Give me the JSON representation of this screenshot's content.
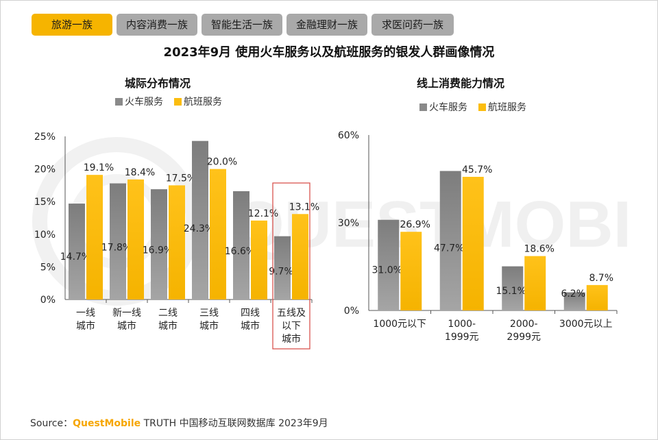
{
  "tabs": [
    {
      "label": "旅游一族",
      "active": true
    },
    {
      "label": "内容消费一族",
      "active": false
    },
    {
      "label": "智能生活一族",
      "active": false
    },
    {
      "label": "金融理财一族",
      "active": false
    },
    {
      "label": "求医问药一族",
      "active": false
    }
  ],
  "title": "2023年9月 使用火车服务以及航班服务的银发人群画像情况",
  "source": {
    "prefix": "Source：",
    "brand": "QuestMobile",
    "rest": " TRUTH 中国移动互联网数据库 2023年9月"
  },
  "watermark_text": "QUESTMOBILE",
  "colors": {
    "train": "#8a8a8a",
    "flight": "#fbbd0f",
    "highlight": "#d9534f"
  },
  "chart_data": [
    {
      "type": "bar",
      "title": "城际分布情况",
      "categories": [
        [
          "一线",
          "城市"
        ],
        [
          "新一线",
          "城市"
        ],
        [
          "二线",
          "城市"
        ],
        [
          "三线",
          "城市"
        ],
        [
          "四线",
          "城市"
        ],
        [
          "五线及",
          "以下",
          "城市"
        ]
      ],
      "series": [
        {
          "name": "火车服务",
          "values": [
            14.7,
            17.8,
            16.9,
            24.3,
            16.6,
            9.7
          ]
        },
        {
          "name": "航班服务",
          "values": [
            19.1,
            18.4,
            17.5,
            20.0,
            12.1,
            13.1
          ]
        }
      ],
      "ylim": [
        0,
        25
      ],
      "yticks": [
        "0%",
        "5%",
        "10%",
        "15%",
        "20%",
        "25%"
      ],
      "highlight_index": 5,
      "legend": "top"
    },
    {
      "type": "bar",
      "title": "线上消费能力情况",
      "categories": [
        [
          "1000元以下"
        ],
        [
          "1000-",
          "1999元"
        ],
        [
          "2000-",
          "2999元"
        ],
        [
          "3000元以上"
        ]
      ],
      "series": [
        {
          "name": "火车服务",
          "values": [
            31.0,
            47.7,
            15.1,
            6.2
          ]
        },
        {
          "name": "航班服务",
          "values": [
            26.9,
            45.7,
            18.6,
            8.7
          ]
        }
      ],
      "ylim": [
        0,
        60
      ],
      "yticks": [
        "0%",
        "30%",
        "60%"
      ],
      "legend": "top"
    }
  ]
}
